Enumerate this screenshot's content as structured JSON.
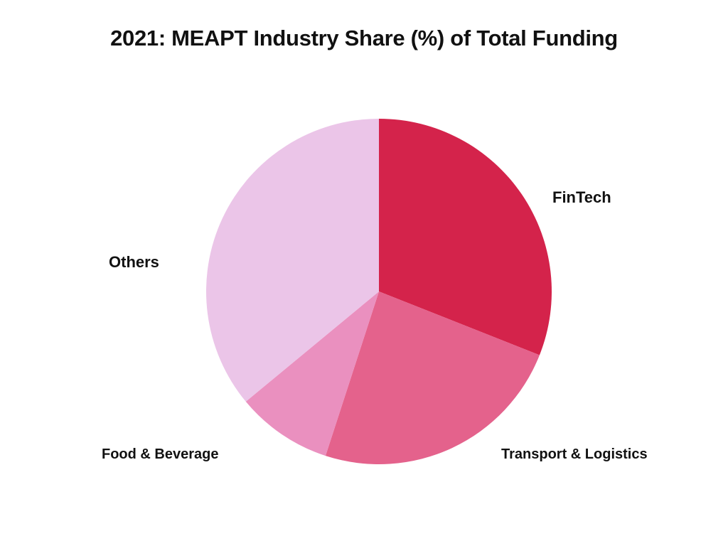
{
  "chart_data": {
    "type": "pie",
    "title": "2021: MEAPT Industry Share (%) of Total Funding",
    "start_angle": "top, clockwise",
    "slices": [
      {
        "label": "FinTech",
        "value": 31,
        "color": "#D4234B"
      },
      {
        "label": "Transport & Logistics",
        "value": 24,
        "color": "#E4628C"
      },
      {
        "label": "Food & Beverage",
        "value": 9,
        "color": "#EA90BF"
      },
      {
        "label": "Others",
        "value": 36,
        "color": "#EBC5E8"
      }
    ]
  }
}
